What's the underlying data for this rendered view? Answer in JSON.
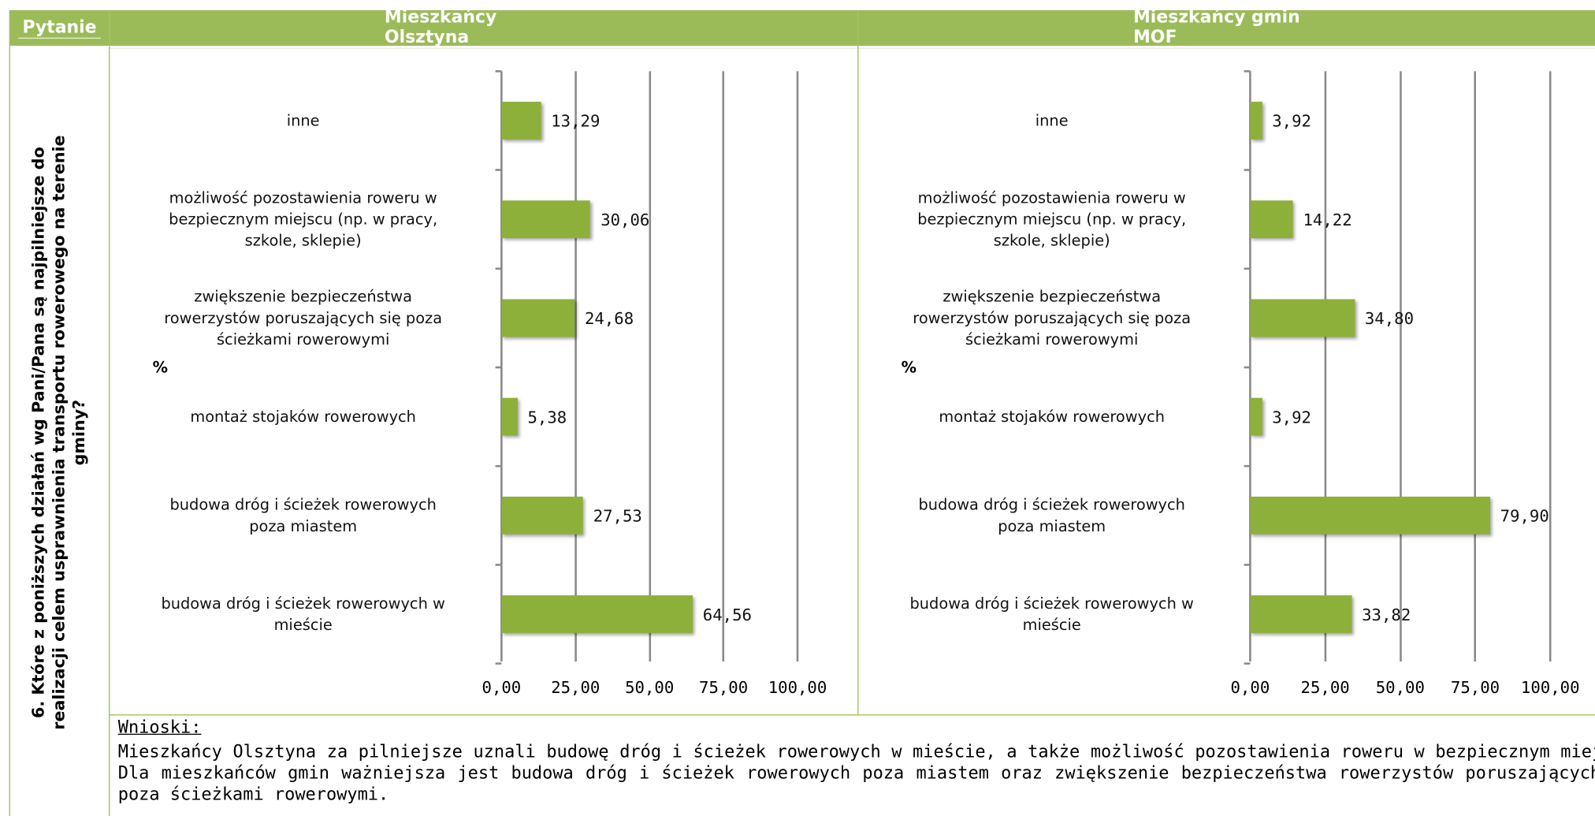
{
  "table": {
    "headers": [
      "Pytanie",
      "Mieszkańcy Olsztyna",
      "Mieszkańcy gmin MOF"
    ],
    "question": "6. Które z poniższych działań wg Pani/Pana są najpilniejsze do\nrealizacji celem usprawnienia transportu rowerowego na terenie\ngminy?",
    "conclusions_title": "Wnioski:",
    "conclusions": "Mieszkańcy Olsztyna za pilniejsze uznali budowę dróg i ścieżek rowerowych w mieście, a także możliwość pozostawienia roweru w bezpiecznym miejscu. Dla mieszkańców gmin ważniejsza jest budowa dróg i ścieżek rowerowych poza miastem oraz zwiększenie bezpieczeństwa rowerzystów poruszających się poza ścieżkami rowerowymi."
  },
  "chart_data": [
    {
      "type": "hbar",
      "ylabel": "%",
      "color": "#8db03b",
      "grid": true,
      "categories": [
        "inne",
        "możliwość pozostawienia roweru w\nbezpiecznym miejscu (np. w pracy,\nszkole, sklepie)",
        "zwiększenie bezpieczeństwa\nrowerzystów poruszających się poza\nścieżkami rowerowymi",
        "montaż stojaków rowerowych",
        "budowa dróg i ścieżek rowerowych\npoza miastem",
        "budowa dróg i ścieżek rowerowych w\nmieście"
      ],
      "values": [
        13.29,
        30.06,
        24.68,
        5.38,
        27.53,
        64.56
      ],
      "value_labels": [
        "13,29",
        "30,06",
        "24,68",
        "5,38",
        "27,53",
        "64,56"
      ],
      "xlim": [
        0,
        100
      ],
      "xticks": [
        {
          "value": 0,
          "label": "0,00"
        },
        {
          "value": 25,
          "label": "25,00"
        },
        {
          "value": 50,
          "label": "50,00"
        },
        {
          "value": 75,
          "label": "75,00"
        },
        {
          "value": 100,
          "label": "100,00"
        }
      ]
    },
    {
      "type": "hbar",
      "ylabel": "%",
      "color": "#8db03b",
      "grid": true,
      "categories": [
        "inne",
        "możliwość pozostawienia roweru w\nbezpiecznym miejscu (np. w pracy,\nszkole, sklepie)",
        "zwiększenie bezpieczeństwa\nrowerzystów poruszających się poza\nścieżkami rowerowymi",
        "montaż stojaków rowerowych",
        "budowa dróg i ścieżek rowerowych\npoza miastem",
        "budowa dróg i ścieżek rowerowych w\nmieście"
      ],
      "values": [
        3.92,
        14.22,
        34.8,
        3.92,
        79.9,
        33.82
      ],
      "value_labels": [
        "3,92",
        "14,22",
        "34,80",
        "3,92",
        "79,90",
        "33,82"
      ],
      "xlim": [
        0,
        100
      ],
      "xticks": [
        {
          "value": 0,
          "label": "0,00"
        },
        {
          "value": 25,
          "label": "25,00"
        },
        {
          "value": 50,
          "label": "50,00"
        },
        {
          "value": 75,
          "label": "75,00"
        },
        {
          "value": 100,
          "label": "100,00"
        }
      ]
    }
  ]
}
